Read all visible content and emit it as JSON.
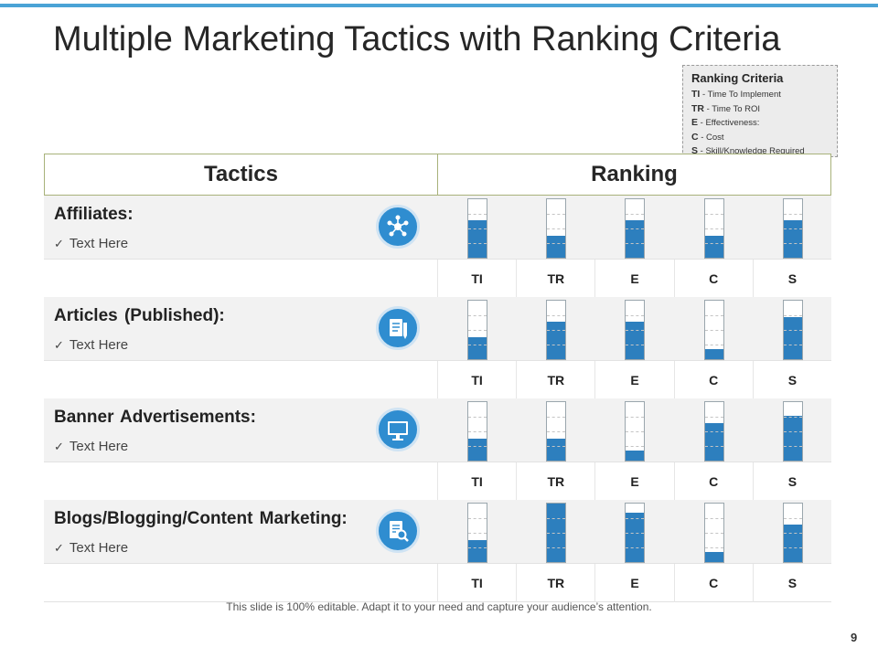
{
  "slide": {
    "title": "Multiple Marketing Tactics with Ranking Criteria",
    "footer": "This slide is 100% editable. Adapt it to your need and capture your audience’s attention.",
    "page_number": "9",
    "accent_color": "#4aa3d6",
    "bar_color": "#2d7fbe"
  },
  "criteria": {
    "title": "Ranking Criteria",
    "items": [
      {
        "abbr": "TI",
        "desc": " - Time To Implement"
      },
      {
        "abbr": "TR",
        "desc": " - Time To ROI"
      },
      {
        "abbr": "E",
        "desc": " - Effectiveness:"
      },
      {
        "abbr": "C",
        "desc": " - Cost"
      },
      {
        "abbr": "S",
        "desc": " - Skill/Knowledge Required"
      }
    ]
  },
  "table": {
    "header_tactics": "Tactics",
    "header_ranking": "Ranking",
    "column_labels": [
      "TI",
      "TR",
      "E",
      "C",
      "S"
    ],
    "rows": [
      {
        "name": "Affiliates:",
        "check": "✓",
        "text": "Text Here",
        "icon": "network-icon",
        "levels": [
          0.64,
          0.38,
          0.64,
          0.38,
          0.64
        ]
      },
      {
        "name": "Articles (Published):",
        "check": "✓",
        "text": "Text Here",
        "icon": "document-pen-icon",
        "levels": [
          0.38,
          0.64,
          0.64,
          0.17,
          0.72
        ]
      },
      {
        "name": "Banner Advertisements:",
        "check": "✓",
        "text": "Text Here",
        "icon": "monitor-icon",
        "levels": [
          0.38,
          0.38,
          0.17,
          0.64,
          0.76
        ]
      },
      {
        "name": "Blogs/Blogging/Content Marketing:",
        "check": "✓",
        "text": "Text Here",
        "icon": "document-search-icon",
        "levels": [
          0.38,
          1.0,
          0.84,
          0.17,
          0.64
        ]
      }
    ]
  }
}
